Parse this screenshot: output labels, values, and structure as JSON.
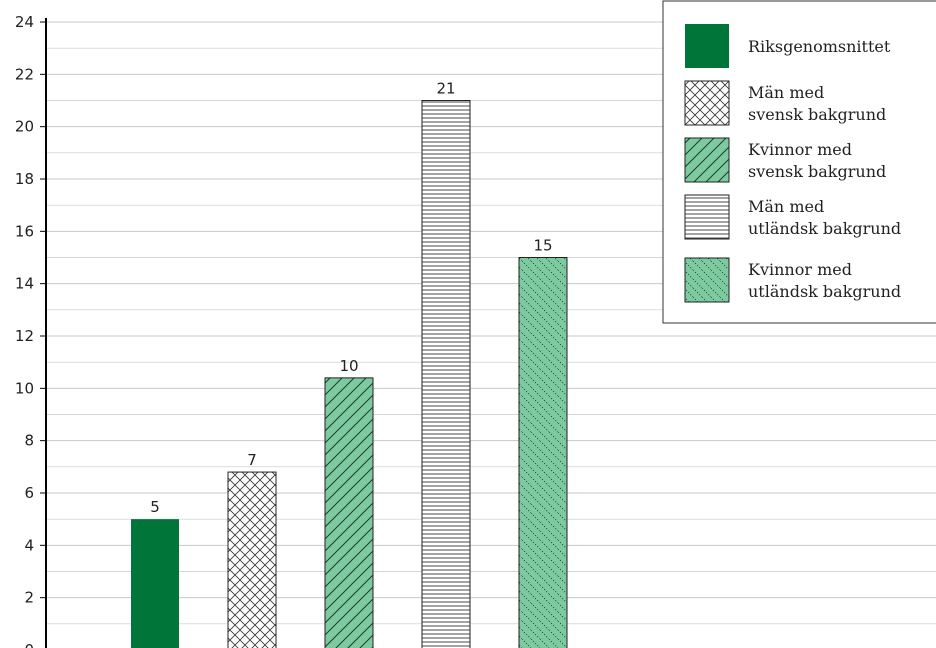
{
  "chart_data": {
    "type": "bar",
    "categories": [
      "Riksgenomsnittet",
      "Män med svensk bakgrund",
      "Kvinnor med svensk bakgrund",
      "Män med utländsk bakgrund",
      "Kvinnor med utländsk bakgrund"
    ],
    "values": [
      5,
      6.8,
      10.4,
      21,
      15
    ],
    "data_labels": [
      "5",
      "7",
      "10",
      "21",
      "15"
    ],
    "ylim": [
      0,
      24
    ],
    "yticks": [
      0,
      2,
      4,
      6,
      8,
      10,
      12,
      14,
      16,
      18,
      20,
      22,
      24
    ],
    "grid": true,
    "legend_position": "top-right",
    "legend": [
      {
        "lines": [
          "Riksgenomsnittet"
        ],
        "pattern": "solid"
      },
      {
        "lines": [
          "Män med",
          "svensk bakgrund"
        ],
        "pattern": "crosshatch"
      },
      {
        "lines": [
          "Kvinnor med",
          "svensk bakgrund"
        ],
        "pattern": "diagonal"
      },
      {
        "lines": [
          "Män med",
          "utländsk bakgrund"
        ],
        "pattern": "horizontal"
      },
      {
        "lines": [
          "Kvinnor med",
          "utländsk bakgrund"
        ],
        "pattern": "dotted"
      }
    ],
    "colors": {
      "solid_green": "#00753a",
      "light_green": "#7dc9a0",
      "grid": "#c8c8c8",
      "axis": "#000000"
    }
  }
}
